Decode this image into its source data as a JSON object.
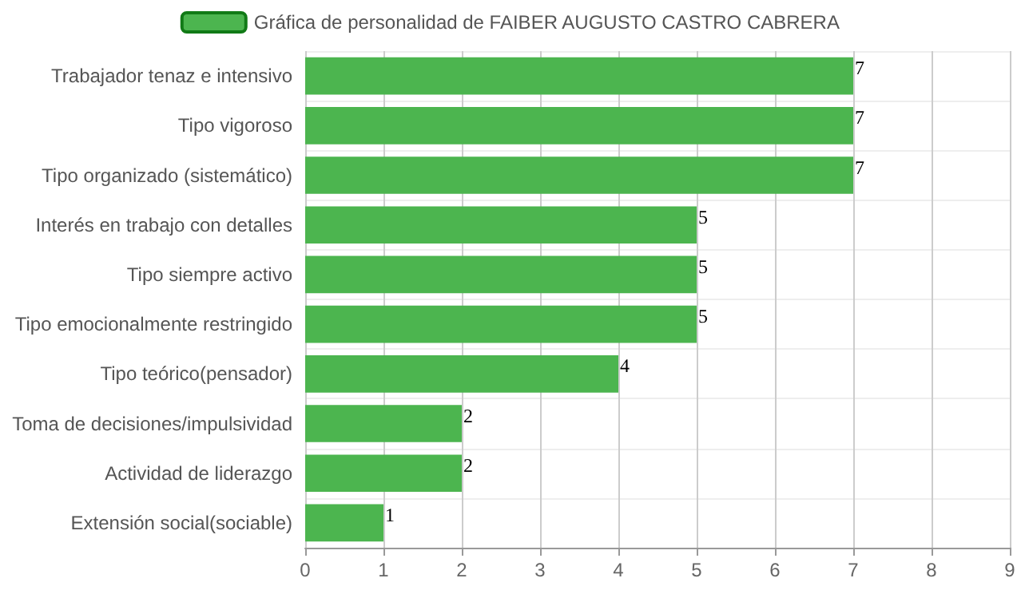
{
  "chart_data": {
    "type": "bar",
    "orientation": "horizontal",
    "categories": [
      "Trabajador tenaz e intensivo",
      "Tipo vigoroso",
      "Tipo organizado (sistemático)",
      "Interés en trabajo con detalles",
      "Tipo siempre activo",
      "Tipo emocionalmente restringido",
      "Tipo teórico(pensador)",
      "Toma de decisiones/impulsividad",
      "Actividad de liderazgo",
      "Extensión social(sociable)"
    ],
    "series": [
      {
        "name": "Gráfica de personalidad de FAIBER AUGUSTO CASTRO CABRERA",
        "color": "#4cb54f",
        "values": [
          7,
          7,
          7,
          5,
          5,
          5,
          4,
          2,
          2,
          1
        ]
      }
    ],
    "xlim": [
      0,
      9
    ],
    "xticks": [
      0,
      1,
      2,
      3,
      4,
      5,
      6,
      7,
      8,
      9
    ],
    "grid": true,
    "legend": "top",
    "data_labels": true
  }
}
